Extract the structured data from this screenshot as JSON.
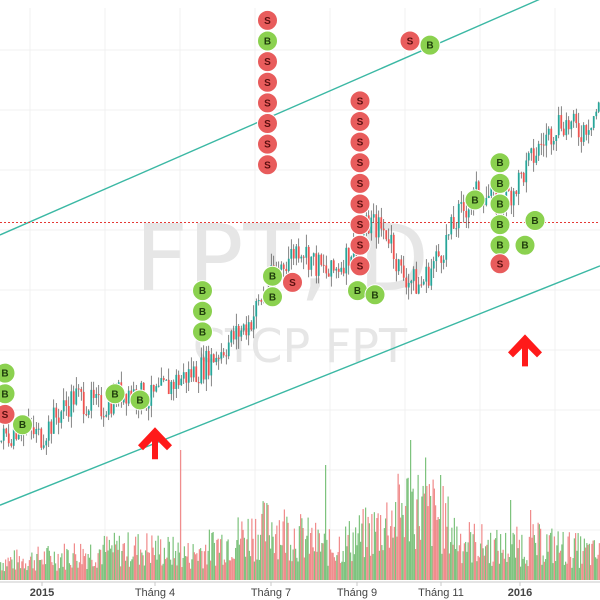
{
  "chart_data": {
    "type": "candlestick",
    "watermark": {
      "symbol": "FPT, D",
      "name": "CTCP FPT"
    },
    "x_ticks": [
      {
        "label": "2015",
        "bold": true
      },
      {
        "label": "Tháng 4",
        "bold": false
      },
      {
        "label": "Tháng 7",
        "bold": false
      },
      {
        "label": "Tháng 9",
        "bold": false
      },
      {
        "label": "Tháng 11",
        "bold": false
      },
      {
        "label": "2016",
        "bold": true
      }
    ],
    "price_path": [
      [
        0,
        36.0
      ],
      [
        4,
        36.8
      ],
      [
        8,
        36.2
      ],
      [
        12,
        37.4
      ],
      [
        15,
        38.2
      ],
      [
        20,
        37.6
      ],
      [
        25,
        38.5
      ],
      [
        30,
        38.0
      ],
      [
        35,
        38.9
      ],
      [
        40,
        39.5
      ],
      [
        45,
        40.6
      ],
      [
        50,
        41.8
      ],
      [
        55,
        44.2
      ],
      [
        60,
        45.5
      ],
      [
        63,
        44.6
      ],
      [
        66,
        44.0
      ],
      [
        70,
        45.2
      ],
      [
        74,
        46.6
      ],
      [
        78,
        46.0
      ],
      [
        80,
        44.2
      ],
      [
        84,
        43.5
      ],
      [
        88,
        45.1
      ],
      [
        92,
        47.0
      ],
      [
        96,
        48.2
      ],
      [
        100,
        47.4
      ],
      [
        104,
        48.7
      ],
      [
        108,
        50.3
      ],
      [
        112,
        51.6
      ],
      [
        116,
        51.0
      ],
      [
        120,
        52.2
      ]
    ],
    "volume_path": [
      [
        0,
        0.8
      ],
      [
        10,
        1.0
      ],
      [
        20,
        1.3
      ],
      [
        30,
        1.4
      ],
      [
        38,
        1.1
      ],
      [
        45,
        1.7
      ],
      [
        55,
        2.4
      ],
      [
        60,
        1.9
      ],
      [
        66,
        1.4
      ],
      [
        75,
        2.2
      ],
      [
        82,
        3.4
      ],
      [
        88,
        2.8
      ],
      [
        92,
        1.8
      ],
      [
        100,
        1.4
      ],
      [
        108,
        1.6
      ],
      [
        116,
        1.3
      ],
      [
        120,
        1.1
      ]
    ],
    "volume_spikes": [
      [
        36,
        5.2
      ],
      [
        65,
        4.6
      ],
      [
        82,
        5.6
      ],
      [
        85,
        4.9
      ],
      [
        88,
        4.2
      ],
      [
        102,
        3.2
      ],
      [
        106,
        2.8
      ]
    ],
    "x_range": [
      0,
      120
    ],
    "y_range": [
      30,
      57
    ],
    "volume_range": [
      0,
      6
    ],
    "resistance_price": 46.6,
    "channel_upper": [
      [
        0,
        46.0
      ],
      [
        120,
        58.7
      ]
    ],
    "channel_lower": [
      [
        0,
        32.9
      ],
      [
        120,
        44.5
      ]
    ],
    "signals": [
      {
        "type": "B",
        "x": 1,
        "y": 39.3
      },
      {
        "type": "B",
        "x": 1,
        "y": 38.3
      },
      {
        "type": "S",
        "x": 1,
        "y": 37.3
      },
      {
        "type": "B",
        "x": 4.5,
        "y": 36.8
      },
      {
        "type": "B",
        "x": 23,
        "y": 38.3
      },
      {
        "type": "B",
        "x": 28,
        "y": 38.0
      },
      {
        "type": "B",
        "x": 40.5,
        "y": 43.3
      },
      {
        "type": "B",
        "x": 40.5,
        "y": 42.3
      },
      {
        "type": "B",
        "x": 40.5,
        "y": 41.3
      },
      {
        "type": "S",
        "x": 53.5,
        "y": 56.4
      },
      {
        "type": "B",
        "x": 53.5,
        "y": 55.4
      },
      {
        "type": "S",
        "x": 53.5,
        "y": 54.4
      },
      {
        "type": "S",
        "x": 53.5,
        "y": 53.4
      },
      {
        "type": "S",
        "x": 53.5,
        "y": 52.4
      },
      {
        "type": "S",
        "x": 53.5,
        "y": 51.4
      },
      {
        "type": "S",
        "x": 53.5,
        "y": 50.4
      },
      {
        "type": "S",
        "x": 53.5,
        "y": 49.4
      },
      {
        "type": "B",
        "x": 54.5,
        "y": 44.0
      },
      {
        "type": "B",
        "x": 54.5,
        "y": 43.0
      },
      {
        "type": "S",
        "x": 58.5,
        "y": 43.7
      },
      {
        "type": "S",
        "x": 72,
        "y": 52.5
      },
      {
        "type": "S",
        "x": 72,
        "y": 51.5
      },
      {
        "type": "S",
        "x": 72,
        "y": 50.5
      },
      {
        "type": "S",
        "x": 72,
        "y": 49.5
      },
      {
        "type": "S",
        "x": 72,
        "y": 48.5
      },
      {
        "type": "S",
        "x": 72,
        "y": 47.5
      },
      {
        "type": "S",
        "x": 72,
        "y": 46.5
      },
      {
        "type": "S",
        "x": 72,
        "y": 45.5
      },
      {
        "type": "S",
        "x": 72,
        "y": 44.5
      },
      {
        "type": "B",
        "x": 71.5,
        "y": 43.3
      },
      {
        "type": "B",
        "x": 75,
        "y": 43.1
      },
      {
        "type": "S",
        "x": 82,
        "y": 55.4
      },
      {
        "type": "B",
        "x": 86,
        "y": 55.2
      },
      {
        "type": "B",
        "x": 95,
        "y": 47.7
      },
      {
        "type": "B",
        "x": 100,
        "y": 49.5
      },
      {
        "type": "B",
        "x": 100,
        "y": 48.5
      },
      {
        "type": "B",
        "x": 100,
        "y": 47.5
      },
      {
        "type": "B",
        "x": 100,
        "y": 46.5
      },
      {
        "type": "B",
        "x": 100,
        "y": 45.5
      },
      {
        "type": "S",
        "x": 100,
        "y": 44.6
      },
      {
        "type": "B",
        "x": 105,
        "y": 45.5
      },
      {
        "type": "B",
        "x": 107,
        "y": 46.7
      }
    ],
    "arrows": [
      {
        "x": 31,
        "y": 36.0
      },
      {
        "x": 105,
        "y": 40.5
      }
    ]
  },
  "colors": {
    "up": "#26a69a",
    "down": "#ef5350",
    "wick": "#333333",
    "volume_up": "#7cc27c",
    "volume_down": "#f08a8a",
    "channel": "#3bb8a4",
    "resistance": "#e53935",
    "grid": "#f0f0f0",
    "buy": "#8bd14f",
    "sell": "#e85c5c",
    "arrow": "#ff1a1a"
  }
}
